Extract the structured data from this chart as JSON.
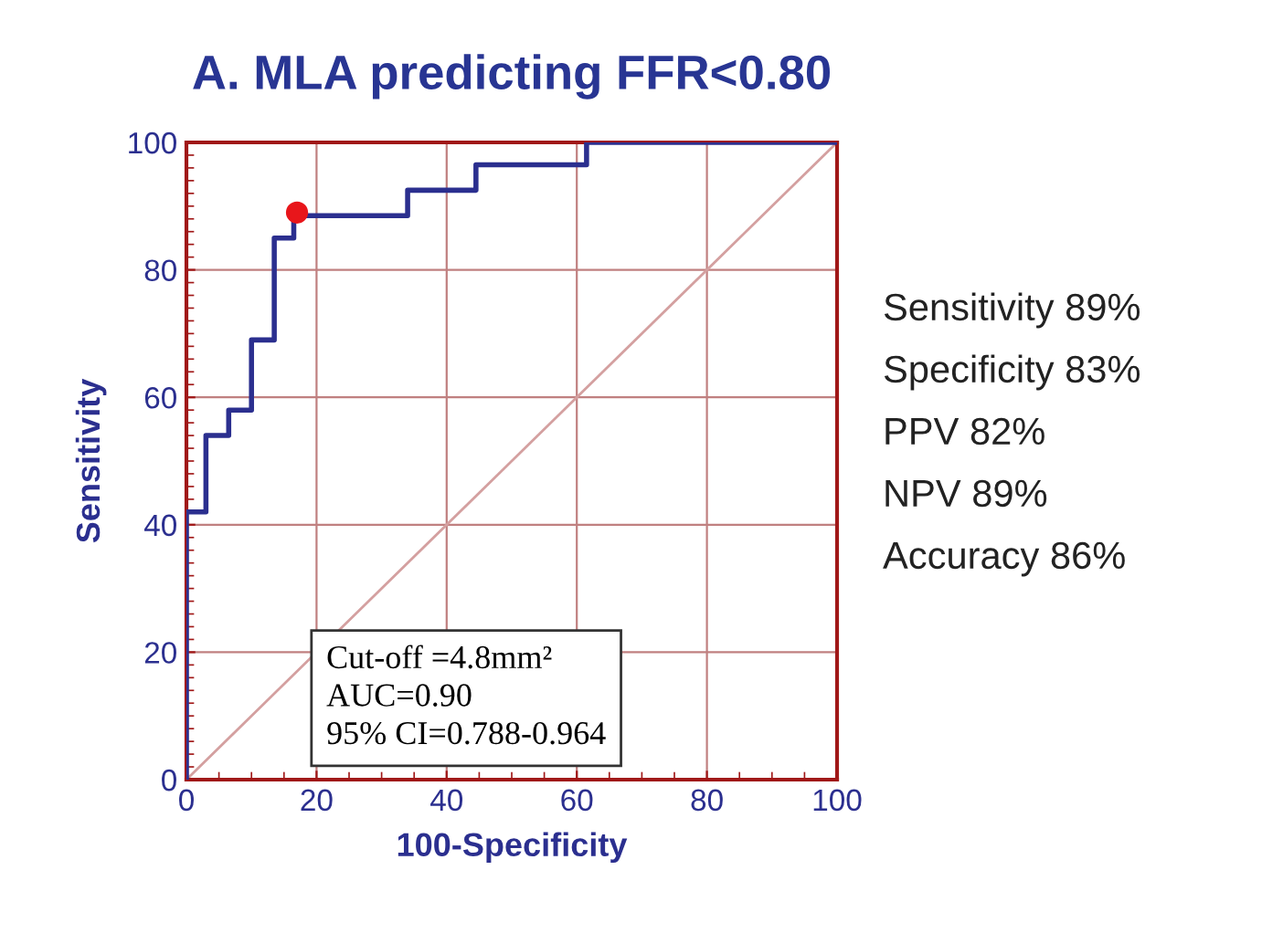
{
  "chart_data": {
    "type": "step",
    "title": "A. MLA predicting FFR<0.80",
    "xlabel": "100-Specificity",
    "ylabel": "Sensitivity",
    "xlim": [
      0,
      100
    ],
    "ylim": [
      0,
      100
    ],
    "xticks": [
      0,
      20,
      40,
      60,
      80,
      100
    ],
    "yticks": [
      0,
      20,
      40,
      60,
      80,
      100
    ],
    "grid": true,
    "series": [
      {
        "type": "line",
        "color": "#d4a0a0",
        "x": [
          0,
          100
        ],
        "values": [
          0,
          100
        ]
      },
      {
        "color": "#2b2f8f",
        "x": [
          0,
          0,
          3,
          6.5,
          10,
          13.5,
          16.5,
          34,
          44.5,
          61.5,
          100
        ],
        "values": [
          0,
          42,
          54,
          58,
          69,
          85,
          88.5,
          92.5,
          96.5,
          100,
          100
        ]
      },
      {
        "type": "scatter",
        "color": "#e8161b",
        "marker": "circle",
        "x": [
          17
        ],
        "values": [
          89
        ]
      }
    ],
    "annotations": [
      "Cut-off =4.8mm²",
      "AUC=0.90",
      "95% CI=0.788-0.964",
      "Sensitivity 89%",
      "Specificity 83%",
      "PPV 82%",
      "NPV 89%",
      "Accuracy 86%"
    ]
  }
}
